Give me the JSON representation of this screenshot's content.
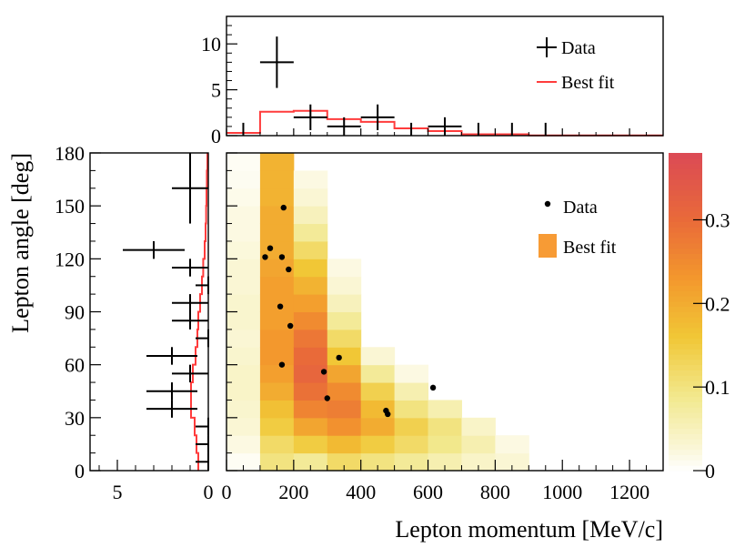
{
  "chart_data": [
    {
      "id": "top-projection",
      "type": "histogram",
      "xlim": [
        0,
        1300
      ],
      "ylim": [
        0,
        13
      ],
      "yticks": [
        "0",
        "5",
        "10"
      ],
      "legend": {
        "placement": "top-right",
        "entries": [
          "Data",
          "Best fit"
        ]
      },
      "data_points": [
        {
          "x": 150,
          "xerr": 50,
          "y": 8,
          "yerr": 2.8
        },
        {
          "x": 250,
          "xerr": 50,
          "y": 2,
          "yerr": 1.4
        },
        {
          "x": 350,
          "xerr": 50,
          "y": 1,
          "yerr": 1.0
        },
        {
          "x": 450,
          "xerr": 50,
          "y": 2,
          "yerr": 1.4
        },
        {
          "x": 650,
          "xerr": 50,
          "y": 1,
          "yerr": 1.0
        }
      ],
      "zero_bins": [
        50,
        550,
        750,
        850,
        950
      ],
      "best_fit_steps": [
        {
          "x0": 0,
          "x1": 100,
          "y": 0.3
        },
        {
          "x0": 100,
          "x1": 200,
          "y": 2.6
        },
        {
          "x0": 200,
          "x1": 300,
          "y": 2.7
        },
        {
          "x0": 300,
          "x1": 400,
          "y": 1.8
        },
        {
          "x0": 400,
          "x1": 500,
          "y": 1.5
        },
        {
          "x0": 500,
          "x1": 600,
          "y": 0.8
        },
        {
          "x0": 600,
          "x1": 700,
          "y": 0.5
        },
        {
          "x0": 700,
          "x1": 900,
          "y": 0.15
        },
        {
          "x0": 900,
          "x1": 1300,
          "y": 0.03
        }
      ]
    },
    {
      "id": "left-projection",
      "type": "histogram-horizontal",
      "xlim": [
        6.5,
        0
      ],
      "xticks": [
        "5",
        "0"
      ],
      "ylim": [
        0,
        180
      ],
      "ylabel": "Lepton angle [deg]",
      "yticks": [
        "0",
        "30",
        "60",
        "90",
        "120",
        "150",
        "180"
      ],
      "data_points": [
        {
          "y": 160,
          "yerr": 20,
          "x": 1,
          "xerr": 1.0
        },
        {
          "y": 125,
          "yerr": 5,
          "x": 3,
          "xerr": 1.7
        },
        {
          "y": 115,
          "yerr": 5,
          "x": 1,
          "xerr": 1.0
        },
        {
          "y": 105,
          "yerr": 5,
          "x": 0,
          "xerr": 0.7
        },
        {
          "y": 95,
          "yerr": 5,
          "x": 1,
          "xerr": 1.0
        },
        {
          "y": 85,
          "yerr": 5,
          "x": 1,
          "xerr": 1.0
        },
        {
          "y": 75,
          "yerr": 5,
          "x": 0,
          "xerr": 0.7
        },
        {
          "y": 65,
          "yerr": 5,
          "x": 2,
          "xerr": 1.4
        },
        {
          "y": 55,
          "yerr": 5,
          "x": 1,
          "xerr": 1.0
        },
        {
          "y": 45,
          "yerr": 5,
          "x": 2,
          "xerr": 1.4
        },
        {
          "y": 35,
          "yerr": 5,
          "x": 2,
          "xerr": 1.4
        },
        {
          "y": 25,
          "yerr": 5,
          "x": 0,
          "xerr": 0.7
        },
        {
          "y": 15,
          "yerr": 5,
          "x": 0,
          "xerr": 0.7
        },
        {
          "y": 5,
          "yerr": 5,
          "x": 0,
          "xerr": 0.7
        }
      ],
      "best_fit_steps": [
        {
          "y0": 0,
          "y1": 10,
          "x": 0.55
        },
        {
          "y0": 10,
          "y1": 20,
          "x": 0.65
        },
        {
          "y0": 20,
          "y1": 30,
          "x": 0.75
        },
        {
          "y0": 30,
          "y1": 40,
          "x": 0.95
        },
        {
          "y0": 40,
          "y1": 50,
          "x": 0.95
        },
        {
          "y0": 50,
          "y1": 60,
          "x": 0.85
        },
        {
          "y0": 60,
          "y1": 70,
          "x": 0.7
        },
        {
          "y0": 70,
          "y1": 80,
          "x": 0.6
        },
        {
          "y0": 80,
          "y1": 90,
          "x": 0.55
        },
        {
          "y0": 90,
          "y1": 100,
          "x": 0.45
        },
        {
          "y0": 100,
          "y1": 110,
          "x": 0.35
        },
        {
          "y0": 110,
          "y1": 120,
          "x": 0.28
        },
        {
          "y0": 120,
          "y1": 130,
          "x": 0.2
        },
        {
          "y0": 130,
          "y1": 140,
          "x": 0.15
        },
        {
          "y0": 140,
          "y1": 150,
          "x": 0.12
        },
        {
          "y0": 150,
          "y1": 160,
          "x": 0.1
        },
        {
          "y0": 160,
          "y1": 170,
          "x": 0.08
        },
        {
          "y0": 170,
          "y1": 180,
          "x": 0.05
        }
      ]
    },
    {
      "id": "main-2d",
      "type": "heatmap",
      "xlabel": "Lepton momentum [MeV/c]",
      "xlim": [
        0,
        1300
      ],
      "xticks": [
        "0",
        "200",
        "400",
        "600",
        "800",
        "1000",
        "1200"
      ],
      "ylim": [
        0,
        180
      ],
      "yticks": [
        "0",
        "30",
        "60",
        "90",
        "120",
        "150",
        "180"
      ],
      "bin_width_x": 100,
      "bin_height_y": 10,
      "zlim": [
        0,
        0.38
      ],
      "colorbar_ticks": [
        "0",
        "0.1",
        "0.2",
        "0.3"
      ],
      "legend": {
        "placement": "top-right",
        "entries": [
          "Data",
          "Best fit"
        ]
      },
      "columns": [
        {
          "x0": 0,
          "values": [
            0.008,
            0.02,
            0.03,
            0.035,
            0.04,
            0.04,
            0.035,
            0.03,
            0.035,
            0.035,
            0.03,
            0.03,
            0.025,
            0.02,
            0.02,
            0.015,
            0.01,
            0.008
          ]
        },
        {
          "x0": 100,
          "values": [
            0.1,
            0.12,
            0.15,
            0.17,
            0.2,
            0.22,
            0.23,
            0.23,
            0.22,
            0.22,
            0.22,
            0.21,
            0.2,
            0.2,
            0.2,
            0.19,
            0.19,
            0.19
          ]
        },
        {
          "x0": 200,
          "values": [
            0.08,
            0.15,
            0.21,
            0.26,
            0.29,
            0.31,
            0.3,
            0.28,
            0.25,
            0.22,
            0.19,
            0.16,
            0.12,
            0.08,
            0.05,
            0.03,
            0.02,
            0.0
          ]
        },
        {
          "x0": 300,
          "values": [
            0.12,
            0.18,
            0.24,
            0.27,
            0.25,
            0.21,
            0.16,
            0.12,
            0.08,
            0.05,
            0.03,
            0.02,
            0.0,
            0.0,
            0.0,
            0.0,
            0.0,
            0.0
          ]
        },
        {
          "x0": 400,
          "values": [
            0.1,
            0.15,
            0.2,
            0.18,
            0.14,
            0.08,
            0.03,
            0.0,
            0.0,
            0.0,
            0.0,
            0.0,
            0.0,
            0.0,
            0.0,
            0.0,
            0.0,
            0.0
          ]
        },
        {
          "x0": 500,
          "values": [
            0.08,
            0.12,
            0.14,
            0.1,
            0.06,
            0.02,
            0.0,
            0.0,
            0.0,
            0.0,
            0.0,
            0.0,
            0.0,
            0.0,
            0.0,
            0.0,
            0.0,
            0.0
          ]
        },
        {
          "x0": 600,
          "values": [
            0.06,
            0.09,
            0.1,
            0.06,
            0.0,
            0.0,
            0.0,
            0.0,
            0.0,
            0.0,
            0.0,
            0.0,
            0.0,
            0.0,
            0.0,
            0.0,
            0.0,
            0.0
          ]
        },
        {
          "x0": 700,
          "values": [
            0.04,
            0.06,
            0.04,
            0.0,
            0.0,
            0.0,
            0.0,
            0.0,
            0.0,
            0.0,
            0.0,
            0.0,
            0.0,
            0.0,
            0.0,
            0.0,
            0.0,
            0.0
          ]
        },
        {
          "x0": 800,
          "values": [
            0.03,
            0.02,
            0.0,
            0.0,
            0.0,
            0.0,
            0.0,
            0.0,
            0.0,
            0.0,
            0.0,
            0.0,
            0.0,
            0.0,
            0.0,
            0.0,
            0.0,
            0.0
          ]
        }
      ],
      "data_points": [
        {
          "x": 170,
          "y": 149
        },
        {
          "x": 130,
          "y": 126
        },
        {
          "x": 115,
          "y": 121
        },
        {
          "x": 165,
          "y": 121
        },
        {
          "x": 185,
          "y": 114
        },
        {
          "x": 160,
          "y": 93
        },
        {
          "x": 190,
          "y": 82
        },
        {
          "x": 335,
          "y": 64
        },
        {
          "x": 165,
          "y": 60
        },
        {
          "x": 290,
          "y": 56
        },
        {
          "x": 615,
          "y": 47
        },
        {
          "x": 300,
          "y": 41
        },
        {
          "x": 475,
          "y": 34
        },
        {
          "x": 480,
          "y": 32
        }
      ]
    }
  ]
}
